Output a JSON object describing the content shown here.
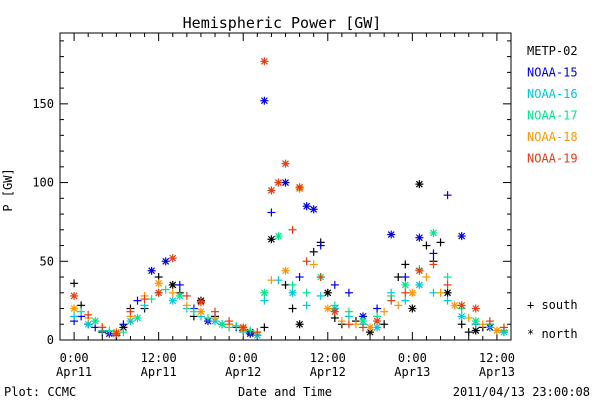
{
  "chart_data": {
    "type": "scatter",
    "title": "Hemispheric Power [GW]",
    "xlabel": "Date and Time",
    "ylabel": "P [GW]",
    "xlim_hours": [
      -2,
      62
    ],
    "ylim": [
      0,
      195
    ],
    "grid": false,
    "legend_position": "right",
    "x_ticks": [
      {
        "time": "0:00",
        "date": "Apr11",
        "hour": 0
      },
      {
        "time": "12:00",
        "date": "Apr11",
        "hour": 12
      },
      {
        "time": "0:00",
        "date": "Apr12",
        "hour": 24
      },
      {
        "time": "12:00",
        "date": "Apr12",
        "hour": 36
      },
      {
        "time": "0:00",
        "date": "Apr13",
        "hour": 48
      },
      {
        "time": "12:00",
        "date": "Apr13",
        "hour": 60
      }
    ],
    "y_ticks": [
      0,
      50,
      100,
      150
    ],
    "marker_legend": [
      {
        "symbol": "+",
        "label": "south"
      },
      {
        "symbol": "*",
        "label": "north"
      }
    ],
    "series": [
      {
        "name": "METP-02",
        "color": "#000000",
        "points": [
          [
            0,
            36,
            "s"
          ],
          [
            1,
            22,
            "s"
          ],
          [
            2,
            10,
            "s"
          ],
          [
            4,
            5,
            "s"
          ],
          [
            6,
            3,
            "s"
          ],
          [
            7,
            8,
            "n"
          ],
          [
            8,
            20,
            "s"
          ],
          [
            10,
            20,
            "s"
          ],
          [
            12,
            40,
            "s"
          ],
          [
            14,
            35,
            "n"
          ],
          [
            15,
            30,
            "s"
          ],
          [
            17,
            15,
            "s"
          ],
          [
            18,
            25,
            "n"
          ],
          [
            20,
            15,
            "s"
          ],
          [
            22,
            10,
            "s"
          ],
          [
            24,
            6,
            "s"
          ],
          [
            25,
            5,
            "n"
          ],
          [
            26,
            3,
            "s"
          ],
          [
            27,
            8,
            "s"
          ],
          [
            28,
            64,
            "n"
          ],
          [
            30,
            35,
            "s"
          ],
          [
            31,
            20,
            "s"
          ],
          [
            32,
            10,
            "n"
          ],
          [
            34,
            56,
            "s"
          ],
          [
            35,
            62,
            "s"
          ],
          [
            36,
            30,
            "n"
          ],
          [
            37,
            14,
            "s"
          ],
          [
            38,
            10,
            "s"
          ],
          [
            40,
            12,
            "s"
          ],
          [
            42,
            5,
            "n"
          ],
          [
            44,
            10,
            "s"
          ],
          [
            46,
            40,
            "s"
          ],
          [
            47,
            48,
            "s"
          ],
          [
            48,
            20,
            "n"
          ],
          [
            49,
            99,
            "n"
          ],
          [
            50,
            60,
            "s"
          ],
          [
            51,
            50,
            "s"
          ],
          [
            52,
            62,
            "s"
          ],
          [
            53,
            30,
            "n"
          ],
          [
            55,
            10,
            "s"
          ],
          [
            56,
            5,
            "s"
          ],
          [
            57,
            6,
            "n"
          ],
          [
            58,
            8,
            "s"
          ],
          [
            59,
            10,
            "s"
          ]
        ]
      },
      {
        "name": "NOAA-15",
        "color": "#0000e6",
        "points": [
          [
            0,
            12,
            "s"
          ],
          [
            1,
            15,
            "s"
          ],
          [
            3,
            8,
            "s"
          ],
          [
            5,
            4,
            "n"
          ],
          [
            7,
            10,
            "s"
          ],
          [
            9,
            25,
            "s"
          ],
          [
            11,
            44,
            "n"
          ],
          [
            13,
            50,
            "n"
          ],
          [
            15,
            35,
            "s"
          ],
          [
            17,
            20,
            "s"
          ],
          [
            19,
            12,
            "n"
          ],
          [
            21,
            10,
            "s"
          ],
          [
            23,
            8,
            "s"
          ],
          [
            25,
            4,
            "n"
          ],
          [
            27,
            152,
            "n"
          ],
          [
            28,
            81,
            "s"
          ],
          [
            30,
            100,
            "n"
          ],
          [
            32,
            40,
            "s"
          ],
          [
            33,
            85,
            "n"
          ],
          [
            34,
            83,
            "n"
          ],
          [
            35,
            60,
            "s"
          ],
          [
            37,
            35,
            "s"
          ],
          [
            39,
            30,
            "s"
          ],
          [
            41,
            15,
            "n"
          ],
          [
            43,
            20,
            "s"
          ],
          [
            45,
            67,
            "n"
          ],
          [
            47,
            40,
            "s"
          ],
          [
            49,
            65,
            "n"
          ],
          [
            51,
            55,
            "s"
          ],
          [
            53,
            92,
            "s"
          ],
          [
            55,
            66,
            "n"
          ],
          [
            57,
            10,
            "s"
          ],
          [
            59,
            8,
            "n"
          ],
          [
            61,
            5,
            "s"
          ]
        ]
      },
      {
        "name": "NOAA-16",
        "color": "#00c8dc",
        "points": [
          [
            0,
            15,
            "s"
          ],
          [
            2,
            10,
            "n"
          ],
          [
            4,
            6,
            "s"
          ],
          [
            6,
            4,
            "s"
          ],
          [
            8,
            12,
            "n"
          ],
          [
            10,
            22,
            "s"
          ],
          [
            12,
            30,
            "s"
          ],
          [
            14,
            25,
            "n"
          ],
          [
            16,
            20,
            "s"
          ],
          [
            18,
            15,
            "s"
          ],
          [
            20,
            12,
            "n"
          ],
          [
            22,
            8,
            "s"
          ],
          [
            24,
            5,
            "s"
          ],
          [
            26,
            3,
            "n"
          ],
          [
            27,
            25,
            "s"
          ],
          [
            29,
            38,
            "s"
          ],
          [
            31,
            30,
            "n"
          ],
          [
            33,
            22,
            "s"
          ],
          [
            35,
            28,
            "s"
          ],
          [
            37,
            20,
            "n"
          ],
          [
            39,
            15,
            "s"
          ],
          [
            41,
            10,
            "s"
          ],
          [
            43,
            8,
            "n"
          ],
          [
            45,
            30,
            "s"
          ],
          [
            47,
            25,
            "s"
          ],
          [
            49,
            35,
            "n"
          ],
          [
            51,
            30,
            "s"
          ],
          [
            53,
            25,
            "s"
          ],
          [
            55,
            15,
            "n"
          ],
          [
            57,
            10,
            "s"
          ],
          [
            59,
            8,
            "s"
          ],
          [
            61,
            5,
            "n"
          ]
        ]
      },
      {
        "name": "NOAA-17",
        "color": "#00e68c",
        "points": [
          [
            1,
            18,
            "s"
          ],
          [
            3,
            12,
            "n"
          ],
          [
            5,
            6,
            "s"
          ],
          [
            7,
            5,
            "s"
          ],
          [
            9,
            14,
            "n"
          ],
          [
            11,
            26,
            "s"
          ],
          [
            13,
            32,
            "s"
          ],
          [
            15,
            28,
            "n"
          ],
          [
            17,
            18,
            "s"
          ],
          [
            19,
            14,
            "s"
          ],
          [
            21,
            10,
            "n"
          ],
          [
            23,
            9,
            "s"
          ],
          [
            25,
            6,
            "s"
          ],
          [
            27,
            30,
            "n"
          ],
          [
            29,
            66,
            "n"
          ],
          [
            31,
            35,
            "s"
          ],
          [
            33,
            30,
            "s"
          ],
          [
            35,
            40,
            "n"
          ],
          [
            37,
            22,
            "s"
          ],
          [
            39,
            18,
            "s"
          ],
          [
            41,
            12,
            "n"
          ],
          [
            43,
            15,
            "s"
          ],
          [
            45,
            28,
            "s"
          ],
          [
            47,
            35,
            "n"
          ],
          [
            49,
            45,
            "s"
          ],
          [
            51,
            68,
            "n"
          ],
          [
            53,
            40,
            "s"
          ],
          [
            55,
            20,
            "s"
          ],
          [
            57,
            12,
            "n"
          ],
          [
            59,
            10,
            "s"
          ],
          [
            61,
            6,
            "s"
          ]
        ]
      },
      {
        "name": "NOAA-18",
        "color": "#ff9600",
        "points": [
          [
            0,
            20,
            "n"
          ],
          [
            2,
            14,
            "s"
          ],
          [
            4,
            8,
            "s"
          ],
          [
            6,
            5,
            "n"
          ],
          [
            8,
            15,
            "s"
          ],
          [
            10,
            28,
            "s"
          ],
          [
            12,
            36,
            "n"
          ],
          [
            14,
            30,
            "s"
          ],
          [
            16,
            22,
            "s"
          ],
          [
            18,
            18,
            "n"
          ],
          [
            20,
            14,
            "s"
          ],
          [
            22,
            10,
            "s"
          ],
          [
            24,
            7,
            "n"
          ],
          [
            26,
            5,
            "s"
          ],
          [
            28,
            38,
            "s"
          ],
          [
            30,
            44,
            "n"
          ],
          [
            32,
            96,
            "n"
          ],
          [
            34,
            48,
            "s"
          ],
          [
            36,
            20,
            "n"
          ],
          [
            38,
            12,
            "s"
          ],
          [
            40,
            10,
            "s"
          ],
          [
            42,
            8,
            "n"
          ],
          [
            44,
            18,
            "s"
          ],
          [
            46,
            22,
            "s"
          ],
          [
            48,
            30,
            "n"
          ],
          [
            50,
            40,
            "s"
          ],
          [
            52,
            30,
            "s"
          ],
          [
            54,
            22,
            "n"
          ],
          [
            56,
            14,
            "s"
          ],
          [
            58,
            10,
            "s"
          ],
          [
            60,
            6,
            "n"
          ]
        ]
      },
      {
        "name": "NOAA-19",
        "color": "#e63c14",
        "points": [
          [
            0,
            28,
            "n"
          ],
          [
            2,
            16,
            "s"
          ],
          [
            4,
            8,
            "s"
          ],
          [
            6,
            4,
            "n"
          ],
          [
            8,
            18,
            "s"
          ],
          [
            10,
            26,
            "s"
          ],
          [
            12,
            30,
            "n"
          ],
          [
            14,
            52,
            "n"
          ],
          [
            16,
            28,
            "s"
          ],
          [
            18,
            24,
            "n"
          ],
          [
            20,
            18,
            "s"
          ],
          [
            22,
            12,
            "s"
          ],
          [
            24,
            8,
            "n"
          ],
          [
            26,
            5,
            "s"
          ],
          [
            27,
            177,
            "n"
          ],
          [
            28,
            95,
            "n"
          ],
          [
            29,
            100,
            "n"
          ],
          [
            30,
            112,
            "n"
          ],
          [
            31,
            70,
            "s"
          ],
          [
            32,
            97,
            "n"
          ],
          [
            33,
            50,
            "s"
          ],
          [
            35,
            40,
            "s"
          ],
          [
            37,
            18,
            "n"
          ],
          [
            39,
            10,
            "s"
          ],
          [
            41,
            8,
            "s"
          ],
          [
            43,
            12,
            "n"
          ],
          [
            45,
            25,
            "s"
          ],
          [
            47,
            30,
            "s"
          ],
          [
            49,
            44,
            "n"
          ],
          [
            51,
            48,
            "s"
          ],
          [
            53,
            35,
            "s"
          ],
          [
            55,
            22,
            "n"
          ],
          [
            57,
            20,
            "n"
          ],
          [
            59,
            12,
            "s"
          ],
          [
            61,
            8,
            "s"
          ]
        ]
      }
    ]
  },
  "footer": {
    "plot_source": "Plot: CCMC",
    "timestamp": "2011/04/13 23:00:08"
  }
}
